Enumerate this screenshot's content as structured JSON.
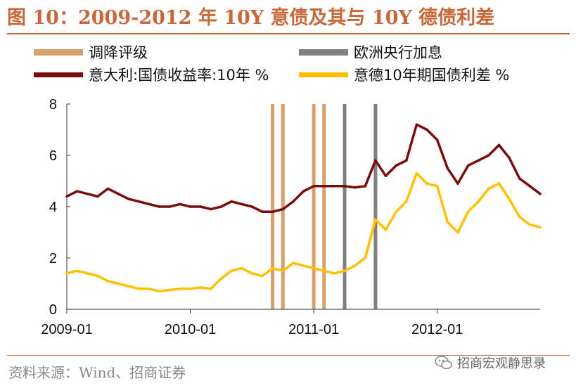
{
  "header": {
    "title": "图 10：2009-2012 年 10Y 意债及其与 10Y 德债利差"
  },
  "footer": {
    "source": "资料来源：Wind、招商证券",
    "watermark": "招商宏观静思录"
  },
  "colors": {
    "title": "#c8673a",
    "downgrade": "#d8a06a",
    "ecb_hike": "#808080",
    "italy_yield": "#7a0c0c",
    "spread": "#ffc000"
  },
  "chart_data": {
    "type": "line",
    "title": "",
    "xlabel": "",
    "ylabel": "",
    "ylim": [
      0,
      8
    ],
    "yticks": [
      0,
      2,
      4,
      6,
      8
    ],
    "xlim": [
      "2009-01",
      "2012-11"
    ],
    "xticks": [
      "2009-01",
      "2010-01",
      "2011-01",
      "2012-01"
    ],
    "grid": false,
    "legend_position": "top",
    "legend": [
      {
        "key": "downgrade",
        "label": "调降评级"
      },
      {
        "key": "ecb_hike",
        "label": "欧洲央行加息"
      },
      {
        "key": "italy_yield",
        "label": "意大利:国债收益率:10年 %"
      },
      {
        "key": "spread",
        "label": "意德10年期国债利差 %"
      }
    ],
    "events": {
      "downgrade": [
        "2010-09",
        "2010-10",
        "2011-01",
        "2011-02"
      ],
      "ecb_hike": [
        "2011-04",
        "2011-07"
      ]
    },
    "series": [
      {
        "name": "意大利:国债收益率:10年 %",
        "key": "italy_yield",
        "x": [
          "2009-01",
          "2009-02",
          "2009-03",
          "2009-04",
          "2009-05",
          "2009-06",
          "2009-07",
          "2009-08",
          "2009-09",
          "2009-10",
          "2009-11",
          "2009-12",
          "2010-01",
          "2010-02",
          "2010-03",
          "2010-04",
          "2010-05",
          "2010-06",
          "2010-07",
          "2010-08",
          "2010-09",
          "2010-10",
          "2010-11",
          "2010-12",
          "2011-01",
          "2011-02",
          "2011-03",
          "2011-04",
          "2011-05",
          "2011-06",
          "2011-07",
          "2011-08",
          "2011-09",
          "2011-10",
          "2011-11",
          "2011-12",
          "2012-01",
          "2012-02",
          "2012-03",
          "2012-04",
          "2012-05",
          "2012-06",
          "2012-07",
          "2012-08",
          "2012-09",
          "2012-10",
          "2012-11"
        ],
        "values": [
          4.4,
          4.6,
          4.5,
          4.4,
          4.7,
          4.5,
          4.3,
          4.2,
          4.1,
          4.0,
          4.0,
          4.1,
          4.0,
          4.0,
          3.9,
          4.0,
          4.2,
          4.1,
          4.0,
          3.8,
          3.8,
          3.9,
          4.2,
          4.6,
          4.8,
          4.8,
          4.8,
          4.8,
          4.75,
          4.8,
          5.8,
          5.2,
          5.6,
          5.8,
          7.2,
          7.0,
          6.6,
          5.5,
          4.9,
          5.6,
          5.8,
          6.0,
          6.4,
          5.9,
          5.1,
          4.8,
          4.5
        ]
      },
      {
        "name": "意德10年期国债利差 %",
        "key": "spread",
        "x": [
          "2009-01",
          "2009-02",
          "2009-03",
          "2009-04",
          "2009-05",
          "2009-06",
          "2009-07",
          "2009-08",
          "2009-09",
          "2009-10",
          "2009-11",
          "2009-12",
          "2010-01",
          "2010-02",
          "2010-03",
          "2010-04",
          "2010-05",
          "2010-06",
          "2010-07",
          "2010-08",
          "2010-09",
          "2010-10",
          "2010-11",
          "2010-12",
          "2011-01",
          "2011-02",
          "2011-03",
          "2011-04",
          "2011-05",
          "2011-06",
          "2011-07",
          "2011-08",
          "2011-09",
          "2011-10",
          "2011-11",
          "2011-12",
          "2012-01",
          "2012-02",
          "2012-03",
          "2012-04",
          "2012-05",
          "2012-06",
          "2012-07",
          "2012-08",
          "2012-09",
          "2012-10",
          "2012-11"
        ],
        "values": [
          1.4,
          1.5,
          1.4,
          1.3,
          1.1,
          1.0,
          0.9,
          0.8,
          0.8,
          0.7,
          0.75,
          0.8,
          0.8,
          0.85,
          0.8,
          1.2,
          1.5,
          1.6,
          1.4,
          1.3,
          1.6,
          1.5,
          1.8,
          1.7,
          1.6,
          1.5,
          1.4,
          1.5,
          1.7,
          2.0,
          3.5,
          3.1,
          3.8,
          4.2,
          5.3,
          4.9,
          4.8,
          3.4,
          3.0,
          3.8,
          4.2,
          4.7,
          4.9,
          4.3,
          3.6,
          3.3,
          3.2
        ]
      }
    ]
  }
}
